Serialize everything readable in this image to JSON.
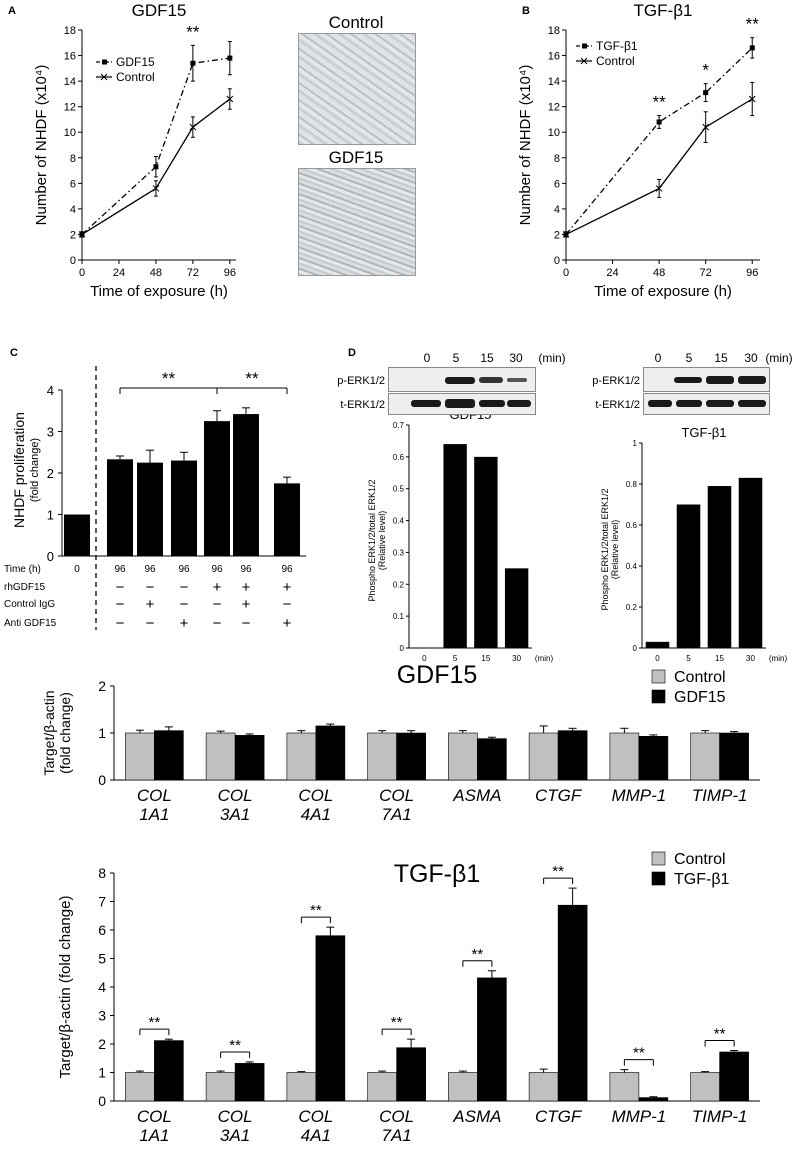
{
  "panel_letters": {
    "a": "A",
    "b": "B",
    "c": "C",
    "d": "D"
  },
  "photos": {
    "control_label": "Control",
    "gdf15_label": "GDF15"
  },
  "stars": {
    "double": "**",
    "single": "*"
  },
  "chart_data": [
    {
      "id": "A",
      "type": "line",
      "title": "GDF15",
      "xlabel": "Time of exposure (h)",
      "ylabel": "Number of NHDF (x10⁴)",
      "x": [
        0,
        48,
        72,
        96
      ],
      "xticks": [
        0,
        24,
        48,
        72,
        96
      ],
      "xlim": [
        0,
        100
      ],
      "ylim": [
        0,
        18
      ],
      "yticks": [
        0,
        2,
        4,
        6,
        8,
        10,
        12,
        14,
        16,
        18
      ],
      "series": [
        {
          "name": "GDF15",
          "values": [
            2,
            7.3,
            15.4,
            15.8
          ],
          "errors": [
            0.2,
            0.8,
            1.4,
            1.3
          ],
          "style": "dashdot"
        },
        {
          "name": "Control",
          "values": [
            2,
            5.6,
            10.4,
            12.6
          ],
          "errors": [
            0.2,
            0.6,
            0.8,
            0.8
          ],
          "style": "solid"
        }
      ],
      "annotations": [
        {
          "x": 72,
          "text": "**"
        }
      ]
    },
    {
      "id": "B",
      "type": "line",
      "title": "TGF-β1",
      "xlabel": "Time of exposure (h)",
      "ylabel": "Number of NHDF (x10⁴)",
      "x": [
        0,
        48,
        72,
        96
      ],
      "xticks": [
        0,
        24,
        48,
        72,
        96
      ],
      "xlim": [
        0,
        100
      ],
      "ylim": [
        0,
        18
      ],
      "yticks": [
        0,
        2,
        4,
        6,
        8,
        10,
        12,
        14,
        16,
        18
      ],
      "series": [
        {
          "name": "TGF-β1",
          "values": [
            2,
            10.8,
            13.1,
            16.6
          ],
          "errors": [
            0.2,
            0.5,
            0.7,
            0.8
          ],
          "style": "dashdot"
        },
        {
          "name": "Control",
          "values": [
            2,
            5.6,
            10.4,
            12.6
          ],
          "errors": [
            0.2,
            0.7,
            1.2,
            1.3
          ],
          "style": "solid"
        }
      ],
      "annotations": [
        {
          "x": 48,
          "text": "**"
        },
        {
          "x": 72,
          "text": "*"
        },
        {
          "x": 96,
          "text": "**"
        }
      ]
    },
    {
      "id": "C",
      "type": "bar",
      "ylabel": "NHDF proliferation",
      "ylabel2": "(fold change)",
      "ylim": [
        0,
        4
      ],
      "yticks": [
        0,
        1,
        2,
        3,
        4
      ],
      "values": [
        1,
        2.33,
        2.25,
        2.3,
        3.25,
        3.42,
        1.75
      ],
      "errors": [
        0,
        0.08,
        0.3,
        0.2,
        0.25,
        0.15,
        0.15
      ],
      "rows": [
        {
          "label": "Time (h)",
          "cells": [
            "0",
            "96",
            "96",
            "96",
            "96",
            "96",
            "96"
          ]
        },
        {
          "label": "rhGDF15",
          "cells": [
            "",
            "−",
            "−",
            "−",
            "+",
            "+",
            "+"
          ]
        },
        {
          "label": "Control IgG",
          "cells": [
            "",
            "−",
            "+",
            "−",
            "−",
            "+",
            "−"
          ]
        },
        {
          "label": "Anti GDF15",
          "cells": [
            "",
            "−",
            "−",
            "+",
            "−",
            "−",
            "+"
          ]
        }
      ],
      "brackets": [
        {
          "from": 1,
          "to": 4,
          "text": "**"
        },
        {
          "from": 4,
          "to": 6,
          "text": "**"
        }
      ]
    },
    {
      "id": "D1",
      "type": "bar",
      "title": "GDF15",
      "ylabel": "Phospho ERK1/2/total ERK1/2",
      "ylabel2": "(Relative level)",
      "categories": [
        "0",
        "5",
        "15",
        "30"
      ],
      "unit": "(min)",
      "values": [
        0,
        0.64,
        0.6,
        0.25
      ],
      "ylim": [
        0,
        0.7
      ],
      "yticks": [
        0,
        0.1,
        0.2,
        0.3,
        0.4,
        0.5,
        0.6,
        0.7
      ]
    },
    {
      "id": "D2",
      "type": "bar",
      "title": "TGF-β1",
      "ylabel": "Phospho ERK1/2/total ERK1/2",
      "ylabel2": "(Relative level)",
      "categories": [
        "0",
        "5",
        "15",
        "30"
      ],
      "unit": "(min)",
      "values": [
        0.03,
        0.7,
        0.79,
        0.83
      ],
      "ylim": [
        0,
        1
      ],
      "yticks": [
        0,
        0.2,
        0.4,
        0.6,
        0.8,
        1
      ]
    },
    {
      "id": "E",
      "type": "bar",
      "title": "GDF15",
      "ylabel": "Target/β-actin",
      "ylabel2": "(fold change)",
      "ylim": [
        0,
        2
      ],
      "yticks": [
        0,
        1,
        2
      ],
      "categories": [
        [
          "COL",
          "1A1"
        ],
        [
          "COL",
          "3A1"
        ],
        [
          "COL",
          "4A1"
        ],
        [
          "COL",
          "7A1"
        ],
        [
          "ASMA",
          ""
        ],
        [
          "CTGF",
          ""
        ],
        [
          "MMP-1",
          ""
        ],
        [
          "TIMP-1",
          ""
        ]
      ],
      "series": [
        {
          "name": "Control",
          "color": "#c0c0c0",
          "values": [
            1,
            1,
            1,
            1,
            1,
            1,
            1,
            1
          ],
          "errors": [
            0.06,
            0.04,
            0.05,
            0.05,
            0.05,
            0.15,
            0.1,
            0.05
          ]
        },
        {
          "name": "GDF15",
          "color": "#000000",
          "values": [
            1.05,
            0.95,
            1.15,
            1.0,
            0.88,
            1.05,
            0.93,
            1.0
          ],
          "errors": [
            0.08,
            0.03,
            0.04,
            0.05,
            0.03,
            0.05,
            0.03,
            0.03
          ]
        }
      ]
    },
    {
      "id": "F",
      "type": "bar",
      "title": "TGF-β1",
      "ylabel": "Target/β-actin (fold change)",
      "ylim": [
        0,
        8
      ],
      "yticks": [
        0,
        1,
        2,
        3,
        4,
        5,
        6,
        7,
        8
      ],
      "categories": [
        [
          "COL",
          "1A1"
        ],
        [
          "COL",
          "3A1"
        ],
        [
          "COL",
          "4A1"
        ],
        [
          "COL",
          "7A1"
        ],
        [
          "ASMA",
          ""
        ],
        [
          "CTGF",
          ""
        ],
        [
          "MMP-1",
          ""
        ],
        [
          "TIMP-1",
          ""
        ]
      ],
      "series": [
        {
          "name": "Control",
          "color": "#c0c0c0",
          "values": [
            1,
            1,
            1,
            1,
            1,
            1,
            1,
            1
          ],
          "errors": [
            0.05,
            0.05,
            0.03,
            0.05,
            0.05,
            0.12,
            0.1,
            0.03
          ]
        },
        {
          "name": "TGF-β1",
          "color": "#000000",
          "values": [
            2.12,
            1.32,
            5.8,
            1.87,
            4.32,
            6.87,
            0.12,
            1.72
          ],
          "errors": [
            0.05,
            0.05,
            0.3,
            0.3,
            0.25,
            0.6,
            0.03,
            0.05
          ]
        }
      ],
      "sig": "**"
    }
  ],
  "blots": {
    "timepoints": [
      "0",
      "5",
      "15",
      "30"
    ],
    "unit": "(min)",
    "row1": "p-ERK1/2",
    "row2": "t-ERK1/2"
  }
}
